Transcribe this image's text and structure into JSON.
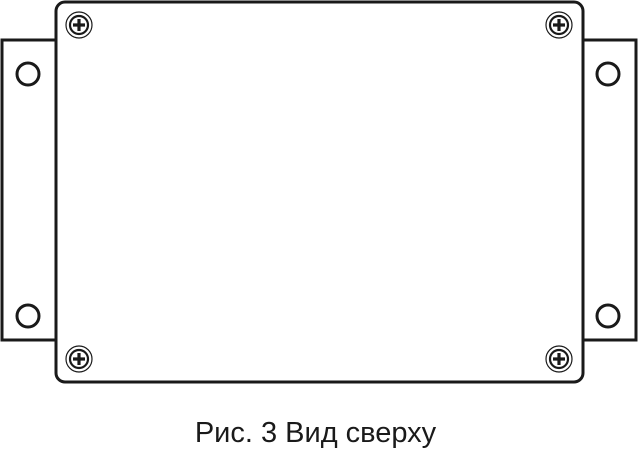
{
  "figure": {
    "caption": "Рис. 3 Вид сверху",
    "line_color": "#1a1a1a",
    "background": "#ffffff"
  }
}
